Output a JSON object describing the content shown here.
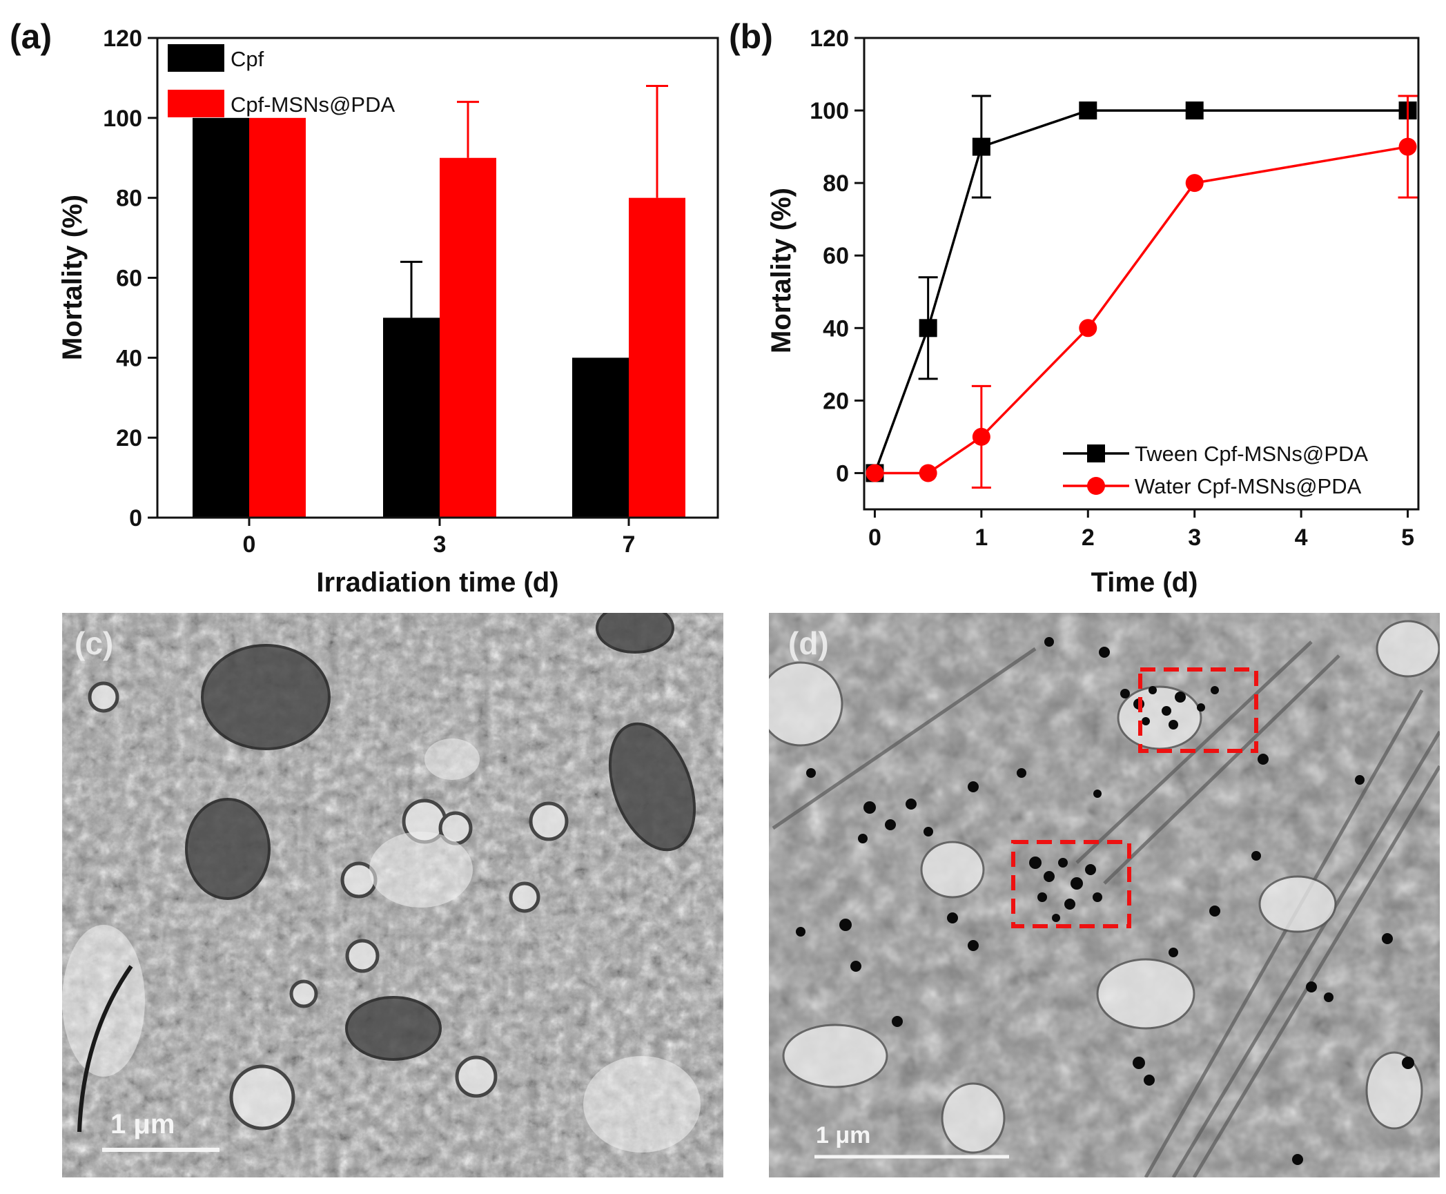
{
  "panel_labels": {
    "a": "(a)",
    "b": "(b)",
    "c": "(c)",
    "d": "(d)"
  },
  "colors": {
    "cpf": "#000000",
    "cpf_msns": "#ff0000",
    "axis": "#111111"
  },
  "chart_data": [
    {
      "id": "a",
      "type": "bar",
      "xlabel": "Irradiation time (d)",
      "ylabel": "Mortality (%)",
      "ylim": [
        0,
        120
      ],
      "yticks": [
        0,
        20,
        40,
        60,
        80,
        100,
        120
      ],
      "categories": [
        "0",
        "3",
        "7"
      ],
      "legend_position": "top-left",
      "series": [
        {
          "name": "Cpf",
          "color": "#000000",
          "values": [
            100,
            50,
            40
          ],
          "errors": [
            0,
            14,
            0
          ]
        },
        {
          "name": "Cpf-MSNs@PDA",
          "color": "#ff0000",
          "values": [
            100,
            90,
            80
          ],
          "errors": [
            0,
            14,
            28
          ]
        }
      ]
    },
    {
      "id": "b",
      "type": "line",
      "xlabel": "Time (d)",
      "ylabel": "Mortality (%)",
      "xlim": [
        -0.1,
        5.1
      ],
      "ylim": [
        -10,
        120
      ],
      "xticks": [
        0,
        1,
        2,
        3,
        4,
        5
      ],
      "yticks": [
        0,
        20,
        40,
        60,
        80,
        100,
        120
      ],
      "legend_position": "bottom-right",
      "series": [
        {
          "name": "Tween Cpf-MSNs@PDA",
          "color": "#000000",
          "marker": "square",
          "x": [
            0,
            0.5,
            1,
            2,
            3,
            5
          ],
          "y": [
            0,
            40,
            90,
            100,
            100,
            100
          ],
          "errors": [
            0,
            14,
            14,
            0,
            0,
            0
          ]
        },
        {
          "name": "Water Cpf-MSNs@PDA",
          "color": "#ff0000",
          "marker": "circle",
          "x": [
            0,
            0.5,
            1,
            2,
            3,
            5
          ],
          "y": [
            0,
            0,
            10,
            40,
            80,
            90
          ],
          "errors": [
            0,
            0,
            14,
            0,
            0,
            14
          ]
        }
      ]
    }
  ],
  "micrographs": {
    "c": {
      "scale_bar": "1 μm"
    },
    "d": {
      "scale_bar": "1 μm",
      "highlight_color": "#ee1111"
    }
  }
}
